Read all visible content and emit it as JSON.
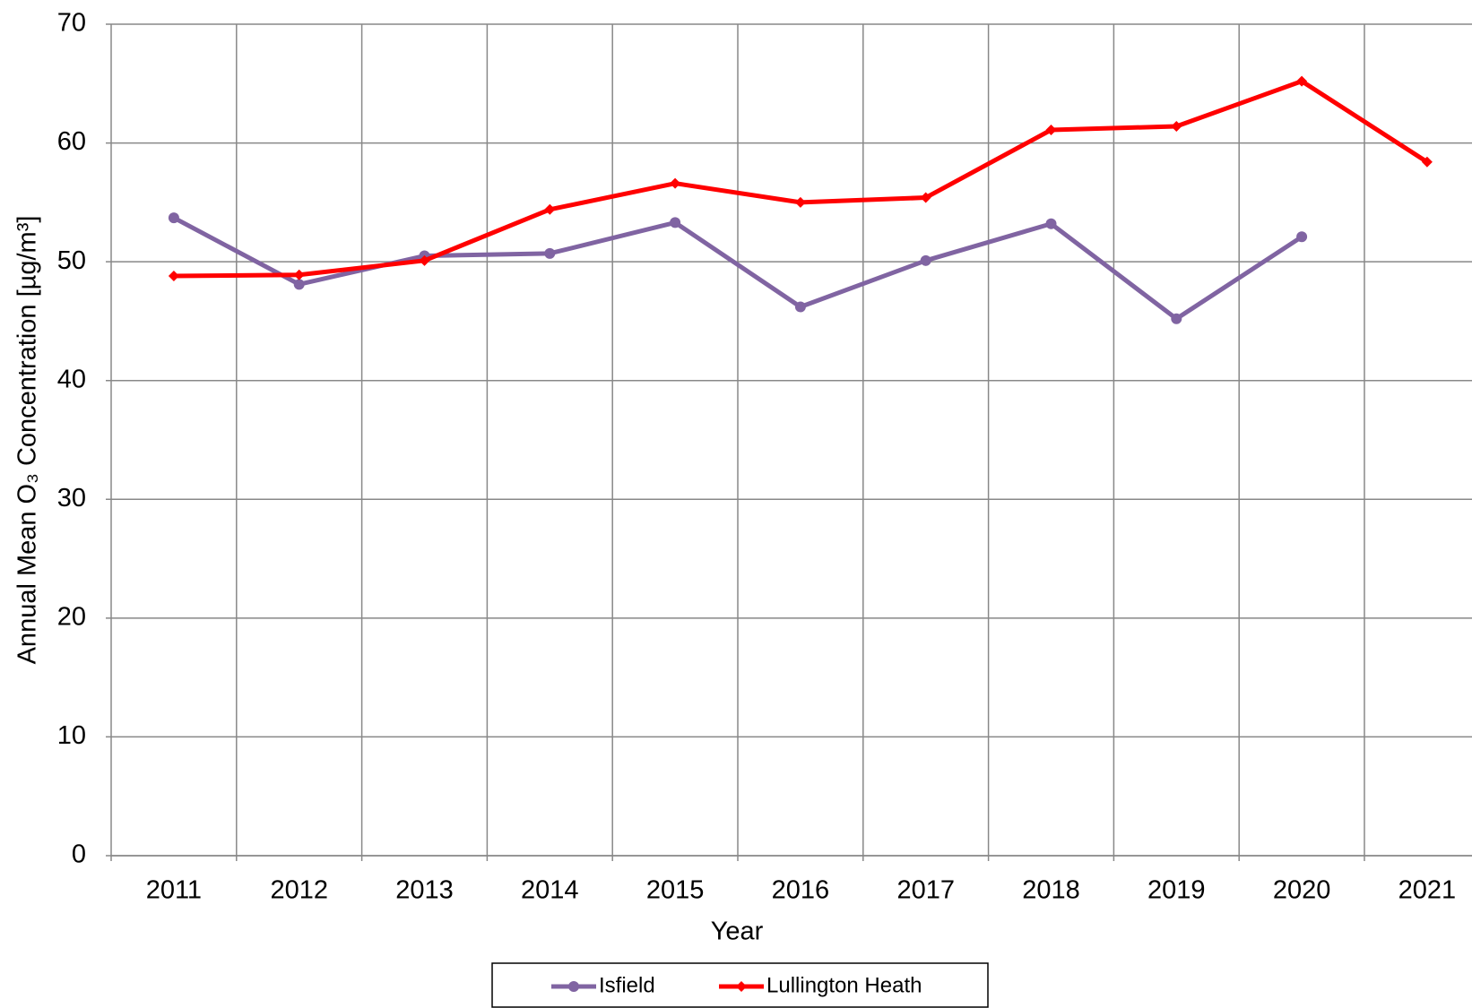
{
  "chart_data": {
    "type": "line",
    "x_label": "Year",
    "y_label": "Annual Mean O₃ Concentration [µg/m³]",
    "categories": [
      "2011",
      "2012",
      "2013",
      "2014",
      "2015",
      "2016",
      "2017",
      "2018",
      "2019",
      "2020",
      "2021"
    ],
    "series": [
      {
        "name": "Isfield",
        "color": "#8064a2",
        "marker": "circle",
        "values": [
          53.7,
          48.1,
          50.5,
          50.7,
          53.3,
          46.2,
          50.1,
          53.2,
          45.2,
          52.1,
          null
        ]
      },
      {
        "name": "Lullington Heath",
        "color": "#ff0000",
        "marker": "diamond",
        "values": [
          48.8,
          48.9,
          50.1,
          54.4,
          56.6,
          55.0,
          55.4,
          61.1,
          61.4,
          65.2,
          58.4
        ]
      }
    ],
    "ylim": [
      0,
      70
    ],
    "yticks": [
      0,
      10,
      20,
      30,
      40,
      50,
      60,
      70
    ],
    "grid": true,
    "legend": "bottom"
  }
}
